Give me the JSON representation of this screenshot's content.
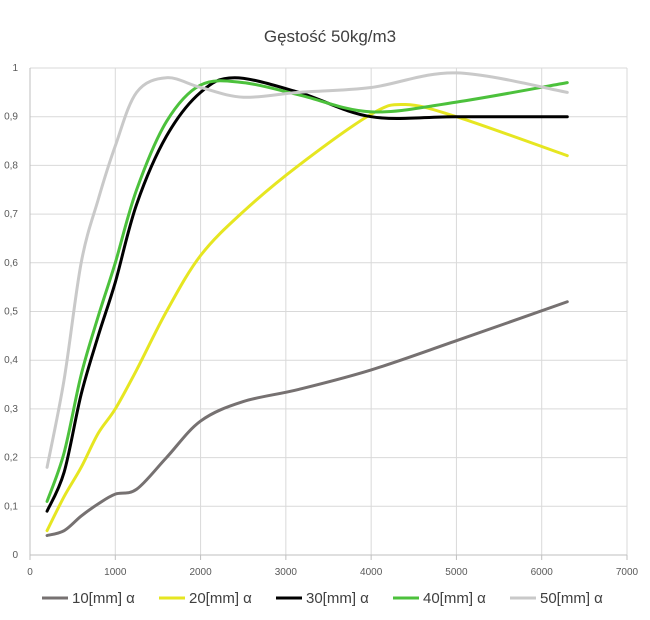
{
  "chart_data": {
    "type": "line",
    "title": "Gęstość 50kg/m3",
    "xlabel": "",
    "ylabel": "",
    "xlim": [
      0,
      7000
    ],
    "ylim": [
      0,
      1
    ],
    "x_ticks": [
      0,
      1000,
      2000,
      3000,
      4000,
      5000,
      6000,
      7000
    ],
    "x_tick_labels": [
      "0",
      "1000",
      "2000",
      "3000",
      "4000",
      "5000",
      "6000",
      "7000"
    ],
    "y_ticks": [
      0,
      0.1,
      0.2,
      0.3,
      0.4,
      0.5,
      0.6,
      0.7,
      0.8,
      0.9,
      1
    ],
    "y_tick_labels": [
      "0",
      "0,1",
      "0,2",
      "0,3",
      "0,4",
      "0,5",
      "0,6",
      "0,7",
      "0,8",
      "0,9",
      "1"
    ],
    "grid": true,
    "legend_position": "bottom",
    "series": [
      {
        "name": "10[mm] α",
        "color": "#767171",
        "x": [
          200,
          400,
          600,
          800,
          1000,
          1250,
          1600,
          2000,
          2500,
          3150,
          4000,
          5000,
          6300
        ],
        "y": [
          0.04,
          0.05,
          0.08,
          0.105,
          0.125,
          0.135,
          0.2,
          0.275,
          0.315,
          0.34,
          0.38,
          0.44,
          0.52
        ]
      },
      {
        "name": "20[mm] α",
        "color": "#e6e621",
        "x": [
          200,
          400,
          600,
          800,
          1000,
          1250,
          1600,
          2000,
          2500,
          3150,
          4000,
          4400,
          5000,
          6300
        ],
        "y": [
          0.05,
          0.12,
          0.18,
          0.25,
          0.3,
          0.38,
          0.5,
          0.615,
          0.705,
          0.8,
          0.905,
          0.925,
          0.9,
          0.82
        ]
      },
      {
        "name": "30[mm] α",
        "color": "#000000",
        "x": [
          200,
          400,
          600,
          800,
          1000,
          1250,
          1600,
          2000,
          2400,
          3150,
          4000,
          5000,
          6300
        ],
        "y": [
          0.09,
          0.17,
          0.33,
          0.45,
          0.56,
          0.72,
          0.86,
          0.95,
          0.98,
          0.95,
          0.9,
          0.9,
          0.9
        ]
      },
      {
        "name": "40[mm] α",
        "color": "#4cc13c",
        "x": [
          200,
          400,
          600,
          800,
          1000,
          1250,
          1600,
          2000,
          2500,
          3150,
          4000,
          5000,
          6300
        ],
        "y": [
          0.11,
          0.21,
          0.37,
          0.49,
          0.6,
          0.75,
          0.89,
          0.965,
          0.97,
          0.945,
          0.91,
          0.93,
          0.97
        ]
      },
      {
        "name": "50[mm] α",
        "color": "#c9c9c9",
        "x": [
          200,
          400,
          600,
          800,
          1000,
          1250,
          1600,
          2000,
          2500,
          3150,
          4000,
          5000,
          6300
        ],
        "y": [
          0.18,
          0.36,
          0.6,
          0.73,
          0.84,
          0.95,
          0.98,
          0.96,
          0.94,
          0.95,
          0.96,
          0.99,
          0.95
        ]
      }
    ]
  }
}
